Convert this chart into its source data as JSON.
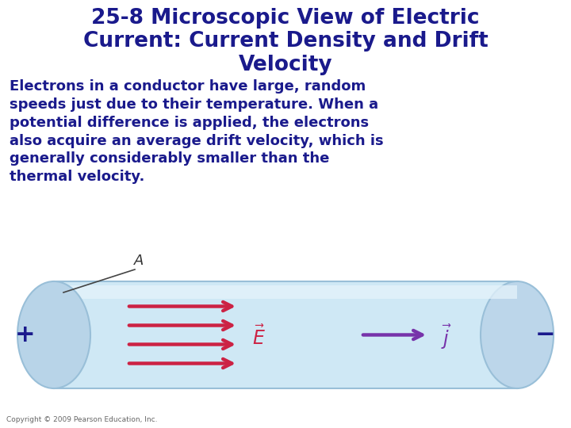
{
  "title_line1": "25-8 Microscopic View of Electric",
  "title_line2": "Current: Current Density and Drift",
  "title_line3": "Velocity",
  "body_lines": [
    "Electrons in a conductor have large, random",
    "speeds just due to their temperature. When a",
    "potential difference is applied, the electrons",
    "also acquire an average drift velocity, which is",
    "generally considerably smaller than the",
    "thermal velocity."
  ],
  "title_color": "#1a1a8c",
  "body_color": "#1a1a8c",
  "background_color": "#ffffff",
  "copyright": "Copyright © 2009 Pearson Education, Inc.",
  "cylinder_fill": "#cfe8f5",
  "cylinder_stroke": "#99bfd8",
  "cylinder_left_fill": "#b8d4e8",
  "cylinder_right_fill": "#bcd6ea",
  "arrow_red": "#cc2244",
  "arrow_purple": "#7733aa",
  "plus_minus_color": "#1a1a8c",
  "label_A_color": "#333333"
}
